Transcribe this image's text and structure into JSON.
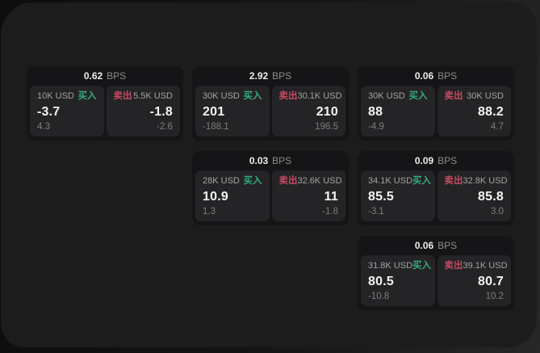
{
  "labels": {
    "bps_unit": "BPS",
    "buy": "买入",
    "sell": "卖出"
  },
  "colors": {
    "buy_green": "#35ac7d",
    "sell_red": "#c54a60",
    "window_bg": "#1c1c1d",
    "card_bg": "#151517",
    "pane_bg": "#242427"
  },
  "cards": [
    {
      "bps": "0.62",
      "buy": {
        "amount": "10K USD",
        "price": "-3.7",
        "delta": "4.3"
      },
      "sell": {
        "amount": "5.5K USD",
        "price": "-1.8",
        "delta": "-2.6"
      }
    },
    {
      "bps": "2.92",
      "buy": {
        "amount": "30K USD",
        "price": "201",
        "delta": "-188.1"
      },
      "sell": {
        "amount": "30.1K USD",
        "price": "210",
        "delta": "196.5"
      }
    },
    {
      "bps": "0.06",
      "buy": {
        "amount": "30K USD",
        "price": "88",
        "delta": "-4.9"
      },
      "sell": {
        "amount": "30K USD",
        "price": "88.2",
        "delta": "4.7"
      }
    },
    {
      "bps": "0.03",
      "buy": {
        "amount": "28K USD",
        "price": "10.9",
        "delta": "1.3"
      },
      "sell": {
        "amount": "32.6K USD",
        "price": "11",
        "delta": "-1.8"
      }
    },
    {
      "bps": "0.09",
      "buy": {
        "amount": "34.1K USD",
        "price": "85.5",
        "delta": "-3.1"
      },
      "sell": {
        "amount": "32.8K USD",
        "price": "85.8",
        "delta": "3.0"
      }
    },
    {
      "bps": "0.06",
      "buy": {
        "amount": "31.8K USD",
        "price": "80.5",
        "delta": "-10.8"
      },
      "sell": {
        "amount": "39.1K USD",
        "price": "80.7",
        "delta": "10.2"
      }
    }
  ]
}
